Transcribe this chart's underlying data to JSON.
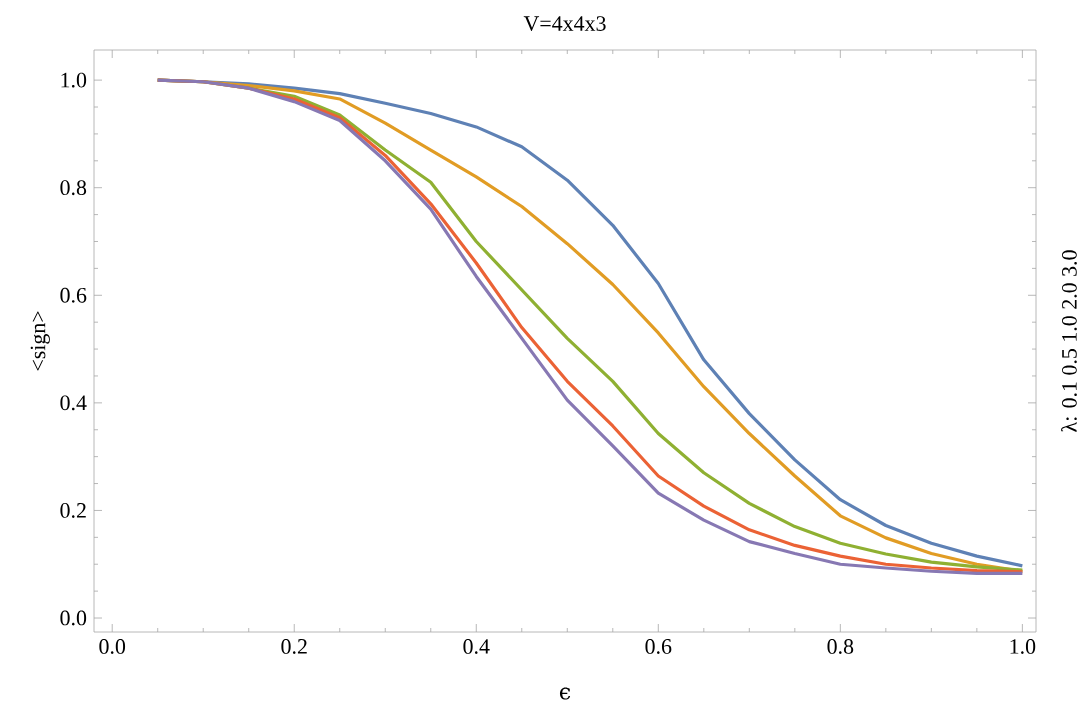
{
  "chart_data": {
    "type": "line",
    "title": "V=4x4x3",
    "xlabel": "ϵ",
    "ylabel": "<sign>",
    "annotations": [
      "λ:  0.1  0.5  1.0  2.0  3.0"
    ],
    "x": [
      0.05,
      0.1,
      0.15,
      0.2,
      0.25,
      0.3,
      0.35,
      0.4,
      0.45,
      0.5,
      0.55,
      0.6,
      0.65,
      0.7,
      0.75,
      0.8,
      0.85,
      0.9,
      0.95,
      1.0
    ],
    "series": [
      {
        "color": "#5e81b5",
        "values": [
          1.0,
          0.997,
          0.993,
          0.985,
          0.975,
          0.957,
          0.938,
          0.913,
          0.876,
          0.814,
          0.73,
          0.622,
          0.48,
          0.38,
          0.294,
          0.22,
          0.172,
          0.139,
          0.115,
          0.097
        ]
      },
      {
        "color": "#e19c24",
        "values": [
          1.0,
          0.997,
          0.99,
          0.98,
          0.965,
          0.92,
          0.87,
          0.82,
          0.765,
          0.696,
          0.62,
          0.53,
          0.43,
          0.343,
          0.264,
          0.19,
          0.149,
          0.12,
          0.1,
          0.087
        ]
      },
      {
        "color": "#8fb032",
        "values": [
          1.0,
          0.997,
          0.985,
          0.97,
          0.935,
          0.87,
          0.81,
          0.7,
          0.61,
          0.52,
          0.44,
          0.343,
          0.27,
          0.213,
          0.17,
          0.139,
          0.119,
          0.104,
          0.095,
          0.089
        ]
      },
      {
        "color": "#eb6235",
        "values": [
          1.0,
          0.997,
          0.985,
          0.965,
          0.93,
          0.86,
          0.77,
          0.66,
          0.54,
          0.44,
          0.357,
          0.264,
          0.208,
          0.164,
          0.135,
          0.115,
          0.1,
          0.093,
          0.088,
          0.086
        ]
      },
      {
        "color": "#8778b3",
        "values": [
          1.0,
          0.997,
          0.985,
          0.96,
          0.925,
          0.85,
          0.76,
          0.635,
          0.52,
          0.405,
          0.32,
          0.232,
          0.182,
          0.142,
          0.12,
          0.1,
          0.093,
          0.087,
          0.083,
          0.083
        ]
      }
    ],
    "xlim": [
      -0.02,
      1.015
    ],
    "ylim": [
      -0.026,
      1.056
    ],
    "xticks": [
      {
        "value": 0,
        "label": "0.0"
      },
      {
        "value": 0.2,
        "label": "0.2"
      },
      {
        "value": 0.4,
        "label": "0.4"
      },
      {
        "value": 0.6,
        "label": "0.6"
      },
      {
        "value": 0.8,
        "label": "0.8"
      },
      {
        "value": 1,
        "label": "1.0"
      }
    ],
    "yticks": [
      {
        "value": 0,
        "label": "0.0"
      },
      {
        "value": 0.2,
        "label": "0.2"
      },
      {
        "value": 0.4,
        "label": "0.4"
      },
      {
        "value": 0.6,
        "label": "0.6"
      },
      {
        "value": 0.8,
        "label": "0.8"
      },
      {
        "value": 1,
        "label": "1.0"
      }
    ],
    "marker": "none",
    "line_style": "solid"
  }
}
